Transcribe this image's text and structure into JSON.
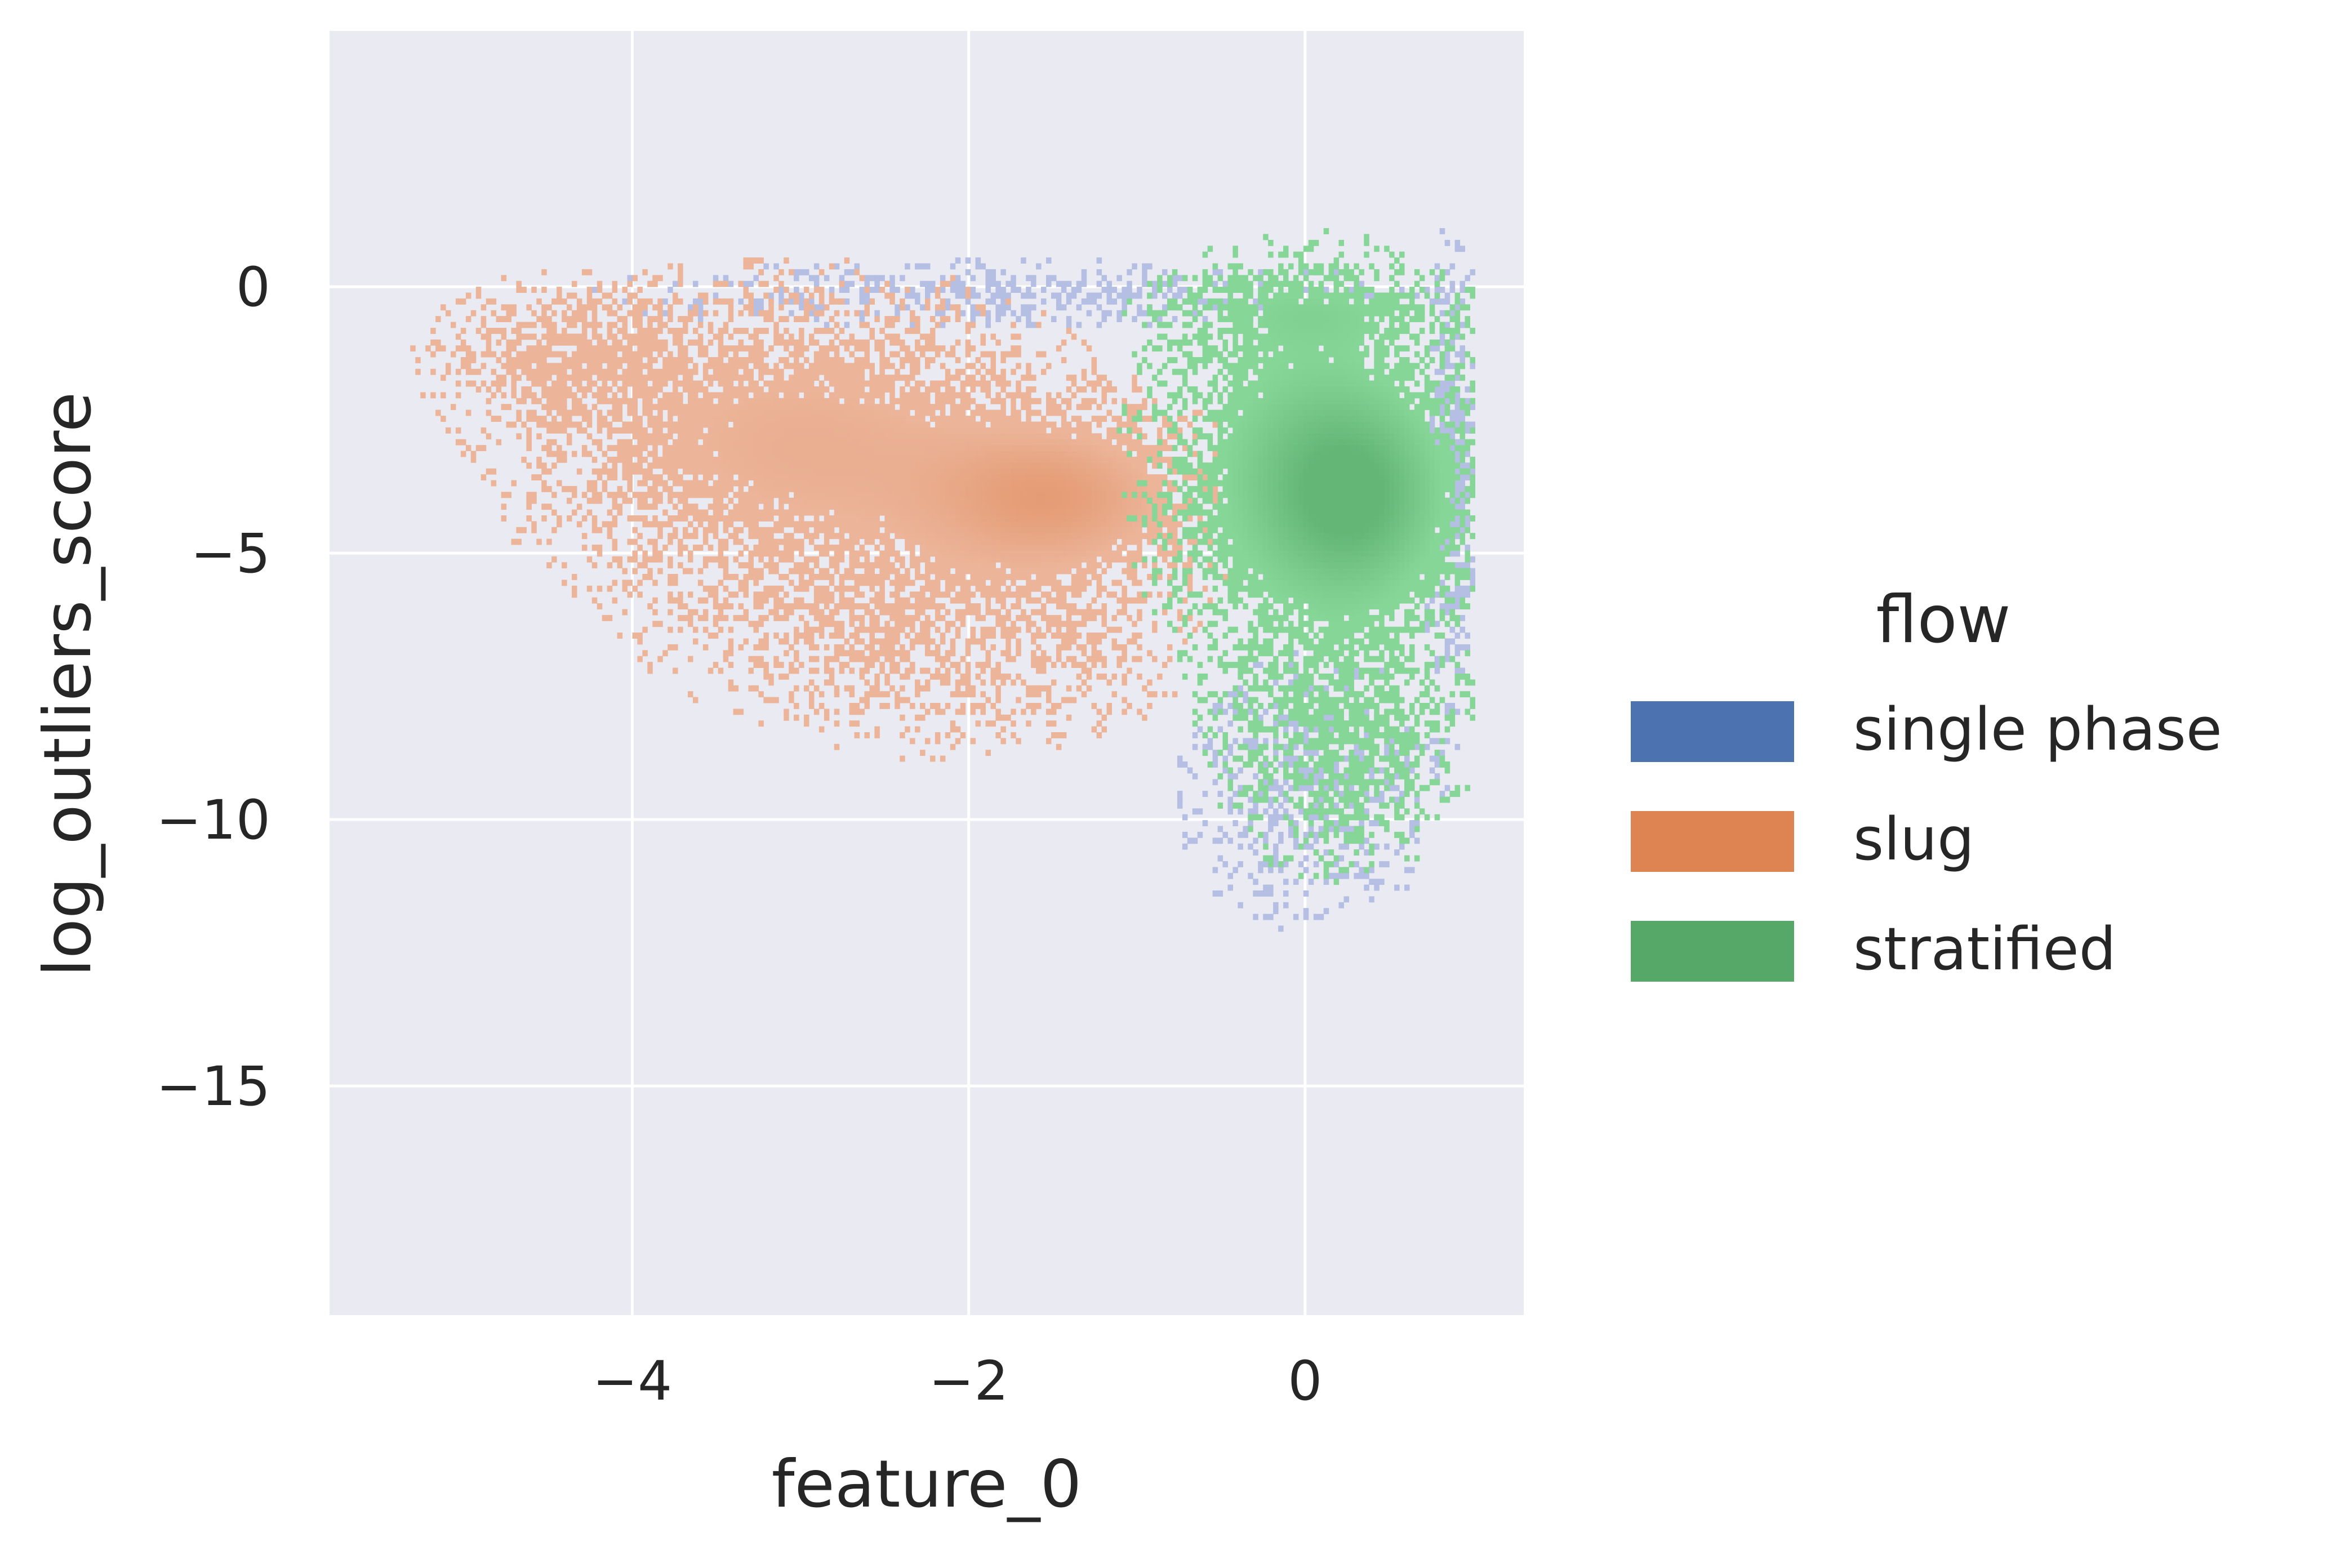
{
  "chart_data": {
    "type": "heatmap",
    "xlabel": "feature_0",
    "ylabel": "log_outliers_score",
    "xlim": [
      -5.8,
      1.3
    ],
    "ylim": [
      -19.3,
      4.8
    ],
    "x_ticks": [
      {
        "value": -4,
        "label": "−4"
      },
      {
        "value": -2,
        "label": "−2"
      },
      {
        "value": 0,
        "label": "0"
      }
    ],
    "y_ticks": [
      {
        "value": 0,
        "label": "0"
      },
      {
        "value": -5,
        "label": "−5"
      },
      {
        "value": -10,
        "label": "−10"
      },
      {
        "value": -15,
        "label": "−15"
      }
    ],
    "grid": true,
    "background_color": "#eaeaf2",
    "legend": {
      "title": "flow",
      "placement": "right",
      "entries": [
        {
          "name": "single phase",
          "color": "#4c72b0"
        },
        {
          "name": "slug",
          "color": "#dd8452"
        },
        {
          "name": "stratified",
          "color": "#55a868"
        }
      ]
    },
    "series": [
      {
        "name": "single phase",
        "color": "#4c72b0",
        "light_color": "#b4bfe3",
        "density_regions": [
          {
            "cx": -1.8,
            "cy": -0.2,
            "sx": 1.4,
            "sy": 0.35,
            "weight": 0.35
          },
          {
            "cx": 0.85,
            "cy": -3.5,
            "sx": 0.08,
            "sy": 2.2,
            "weight": 0.6
          },
          {
            "cx": 0.0,
            "cy": -9.5,
            "sx": 0.45,
            "sy": 1.5,
            "weight": 0.3
          }
        ]
      },
      {
        "name": "slug",
        "color": "#dd8452",
        "light_color": "#ecb59a",
        "density_regions": [
          {
            "cx": -1.5,
            "cy": -4.0,
            "sx": 0.5,
            "sy": 0.9,
            "weight": 1.0
          },
          {
            "cx": -3.0,
            "cy": -3.0,
            "sx": 0.9,
            "sy": 1.6,
            "weight": 0.7
          },
          {
            "cx": -4.4,
            "cy": -1.4,
            "sx": 0.45,
            "sy": 0.8,
            "weight": 0.4
          },
          {
            "cx": -2.2,
            "cy": -6.5,
            "sx": 0.9,
            "sy": 1.3,
            "weight": 0.35
          }
        ]
      },
      {
        "name": "stratified",
        "color": "#55a868",
        "light_color": "#86d697",
        "density_regions": [
          {
            "cx": 0.3,
            "cy": -4.0,
            "sx": 0.35,
            "sy": 1.2,
            "weight": 1.0
          },
          {
            "cx": 0.0,
            "cy": -3.5,
            "sx": 0.5,
            "sy": 2.0,
            "weight": 0.8
          },
          {
            "cx": 0.2,
            "cy": -8.5,
            "sx": 0.4,
            "sy": 1.4,
            "weight": 0.45
          },
          {
            "cx": 0.0,
            "cy": -0.5,
            "sx": 0.55,
            "sy": 0.5,
            "weight": 0.4
          }
        ]
      }
    ]
  }
}
